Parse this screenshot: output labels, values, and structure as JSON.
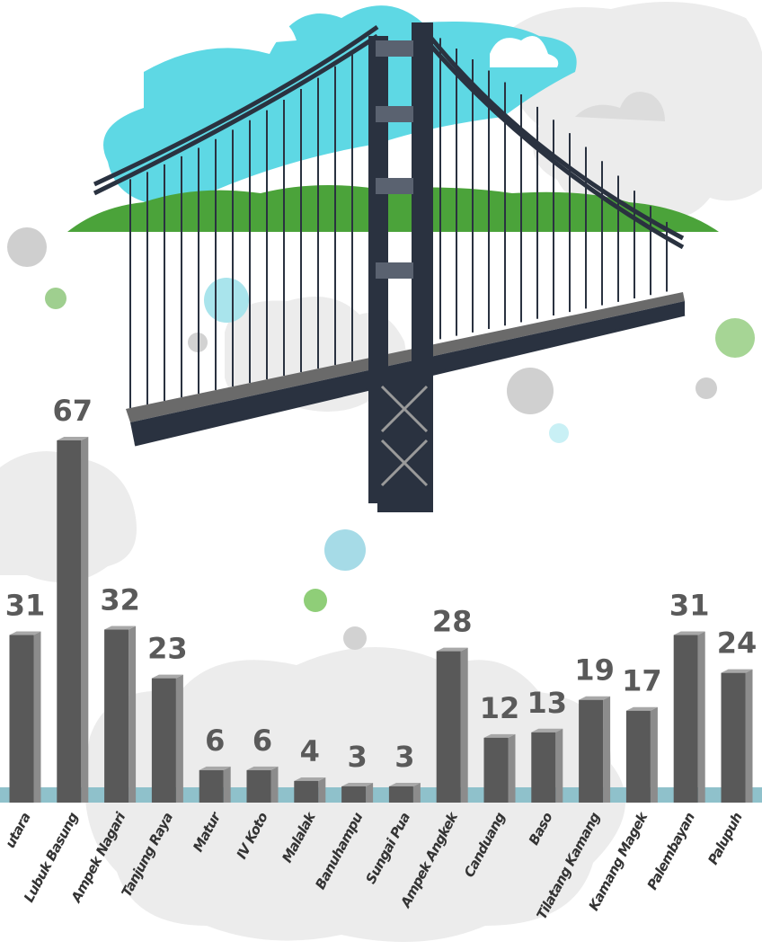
{
  "chart_data": {
    "type": "bar",
    "categories": [
      "utara",
      "Lubuk Basung",
      "Ampek Nagari",
      "Tanjung Raya",
      "Matur",
      "IV Koto",
      "Malalak",
      "Banuhampu",
      "Sungai Pua",
      "Ampek Angkek",
      "Canduang",
      "Baso",
      "Tilatang Kamang",
      "Kamang Magek",
      "Palembayan",
      "Palupuh"
    ],
    "values": [
      31,
      67,
      32,
      23,
      6,
      6,
      4,
      3,
      3,
      28,
      12,
      13,
      19,
      17,
      31,
      24
    ],
    "color": "#595959"
  }
}
